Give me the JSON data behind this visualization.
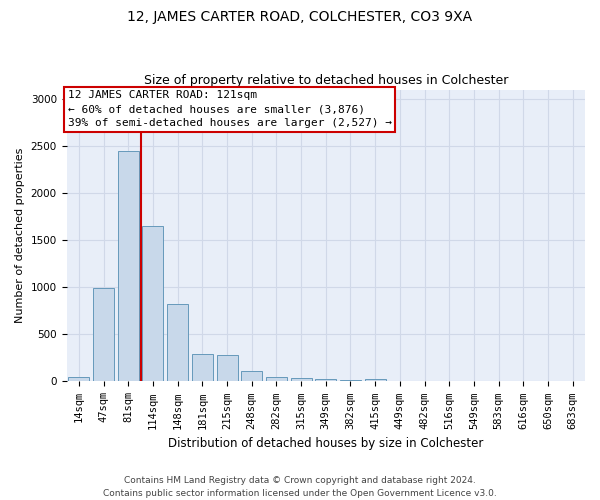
{
  "title": "12, JAMES CARTER ROAD, COLCHESTER, CO3 9XA",
  "subtitle": "Size of property relative to detached houses in Colchester",
  "xlabel": "Distribution of detached houses by size in Colchester",
  "ylabel": "Number of detached properties",
  "categories": [
    "14sqm",
    "47sqm",
    "81sqm",
    "114sqm",
    "148sqm",
    "181sqm",
    "215sqm",
    "248sqm",
    "282sqm",
    "315sqm",
    "349sqm",
    "382sqm",
    "415sqm",
    "449sqm",
    "482sqm",
    "516sqm",
    "549sqm",
    "583sqm",
    "616sqm",
    "650sqm",
    "683sqm"
  ],
  "values": [
    50,
    990,
    2450,
    1650,
    820,
    290,
    285,
    110,
    50,
    40,
    30,
    20,
    25,
    0,
    0,
    0,
    0,
    0,
    0,
    0,
    0
  ],
  "bar_color": "#c8d8ea",
  "bar_edge_color": "#6699bb",
  "property_line_color": "#cc0000",
  "annotation_line1": "12 JAMES CARTER ROAD: 121sqm",
  "annotation_line2": "← 60% of detached houses are smaller (3,876)",
  "annotation_line3": "39% of semi-detached houses are larger (2,527) →",
  "annotation_box_color": "#ffffff",
  "annotation_box_edge_color": "#cc0000",
  "ylim": [
    0,
    3100
  ],
  "yticks": [
    0,
    500,
    1000,
    1500,
    2000,
    2500,
    3000
  ],
  "grid_color": "#d0d8e8",
  "bg_color": "#e8eef8",
  "footer_text": "Contains HM Land Registry data © Crown copyright and database right 2024.\nContains public sector information licensed under the Open Government Licence v3.0.",
  "title_fontsize": 10,
  "subtitle_fontsize": 9,
  "xlabel_fontsize": 8.5,
  "ylabel_fontsize": 8,
  "tick_fontsize": 7.5,
  "annotation_fontsize": 8,
  "footer_fontsize": 6.5
}
